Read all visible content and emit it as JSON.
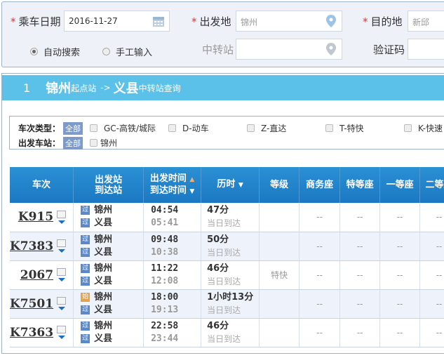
{
  "search": {
    "date_label": "乘车日期",
    "date_value": "2016-11-27",
    "from_label": "出发地",
    "from_placeholder": "锦州",
    "to_label": "目的地",
    "to_placeholder": "新邱",
    "transfer_label": "中转站",
    "captcha_label": "验证码",
    "radio_auto": "自动搜索",
    "radio_manual": "手工输入",
    "selected_mode": "自动搜索"
  },
  "result": {
    "index": "1",
    "from": "锦州",
    "from_suffix": "起点站",
    "arrow": "->",
    "to": "义县",
    "to_suffix": "中转站查询"
  },
  "filters": {
    "type_label": "车次类型：",
    "all": "全部",
    "types": [
      "GC-高铁/城际",
      "D-动车",
      "Z-直达",
      "T-特快",
      "K-快速"
    ],
    "station_label": "出发车站：",
    "stations": [
      "锦州"
    ]
  },
  "table": {
    "headers": {
      "train": "车次",
      "stations": [
        "出发站",
        "到达站"
      ],
      "times": [
        "出发时间",
        "到达时间"
      ],
      "duration": "历时",
      "grade": "等级",
      "business": "商务座",
      "special": "特等座",
      "first": "一等座",
      "second": "二等座"
    },
    "rows": [
      {
        "train": "K915",
        "from_tag": "过",
        "from": "锦州",
        "to_tag": "过",
        "to": "义县",
        "dep": "04:54",
        "arr": "05:41",
        "dur": "47分",
        "arrive": "当日到达",
        "grade": "",
        "seats": [
          "--",
          "--",
          "--",
          "--"
        ]
      },
      {
        "train": "K7383",
        "from_tag": "过",
        "from": "锦州",
        "to_tag": "过",
        "to": "义县",
        "dep": "09:48",
        "arr": "10:38",
        "dur": "50分",
        "arrive": "当日到达",
        "grade": "",
        "seats": [
          "--",
          "--",
          "--",
          "--"
        ]
      },
      {
        "train": "2067",
        "from_tag": "过",
        "from": "锦州",
        "to_tag": "过",
        "to": "义县",
        "dep": "11:22",
        "arr": "12:08",
        "dur": "46分",
        "arrive": "当日到达",
        "grade": "特快",
        "seats": [
          "--",
          "--",
          "--",
          "--"
        ]
      },
      {
        "train": "K7501",
        "from_tag": "始",
        "from": "锦州",
        "to_tag": "过",
        "to": "义县",
        "dep": "18:00",
        "arr": "19:13",
        "dur": "1小时13分",
        "arrive": "当日到达",
        "grade": "",
        "seats": [
          "--",
          "--",
          "--",
          "--"
        ]
      },
      {
        "train": "K7363",
        "from_tag": "过",
        "from": "锦州",
        "to_tag": "过",
        "to": "义县",
        "dep": "22:58",
        "arr": "23:44",
        "dur": "46分",
        "arrive": "当日到达",
        "grade": "",
        "seats": [
          "--",
          "--",
          "--",
          "--"
        ]
      }
    ]
  }
}
